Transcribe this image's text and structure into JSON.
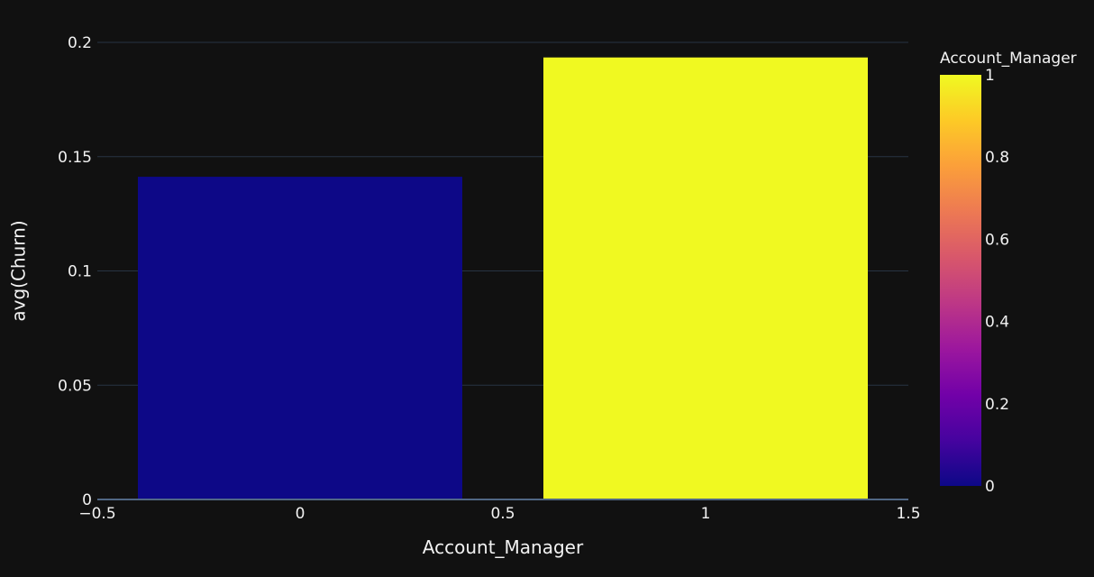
{
  "chart_data": {
    "type": "bar",
    "x": [
      0,
      1
    ],
    "values": [
      0.1412,
      0.1934
    ],
    "color_values": [
      0,
      1
    ],
    "xlabel": "Account_Manager",
    "ylabel": "avg(Churn)",
    "xlim": [
      -0.5,
      1.5
    ],
    "ylim": [
      0,
      0.2
    ],
    "x_ticks": [
      -0.5,
      0,
      0.5,
      1,
      1.5
    ],
    "x_tick_labels": [
      "−0.5",
      "0",
      "0.5",
      "1",
      "1.5"
    ],
    "y_ticks": [
      0,
      0.05,
      0.1,
      0.15,
      0.2
    ],
    "y_tick_labels": [
      "0",
      "0.05",
      "0.1",
      "0.15",
      "0.2"
    ],
    "bar_width": 0.8,
    "grid": true,
    "colorscale": "plasma",
    "colorbar": {
      "title": "Account_Manager",
      "range": [
        0,
        1
      ],
      "ticks": [
        0,
        0.2,
        0.4,
        0.6,
        0.8,
        1
      ],
      "tick_labels": [
        "0",
        "0.2",
        "0.4",
        "0.6",
        "0.8",
        "1"
      ],
      "placement": "right"
    },
    "colors": {
      "background": "#111111",
      "grid": "#283442",
      "text": "#f2f2f2",
      "scale": [
        "#0d0887",
        "#46039f",
        "#7201a8",
        "#9c179e",
        "#bd3786",
        "#d8576b",
        "#ed7953",
        "#fb9f3a",
        "#fdca26",
        "#f0f921"
      ]
    }
  }
}
